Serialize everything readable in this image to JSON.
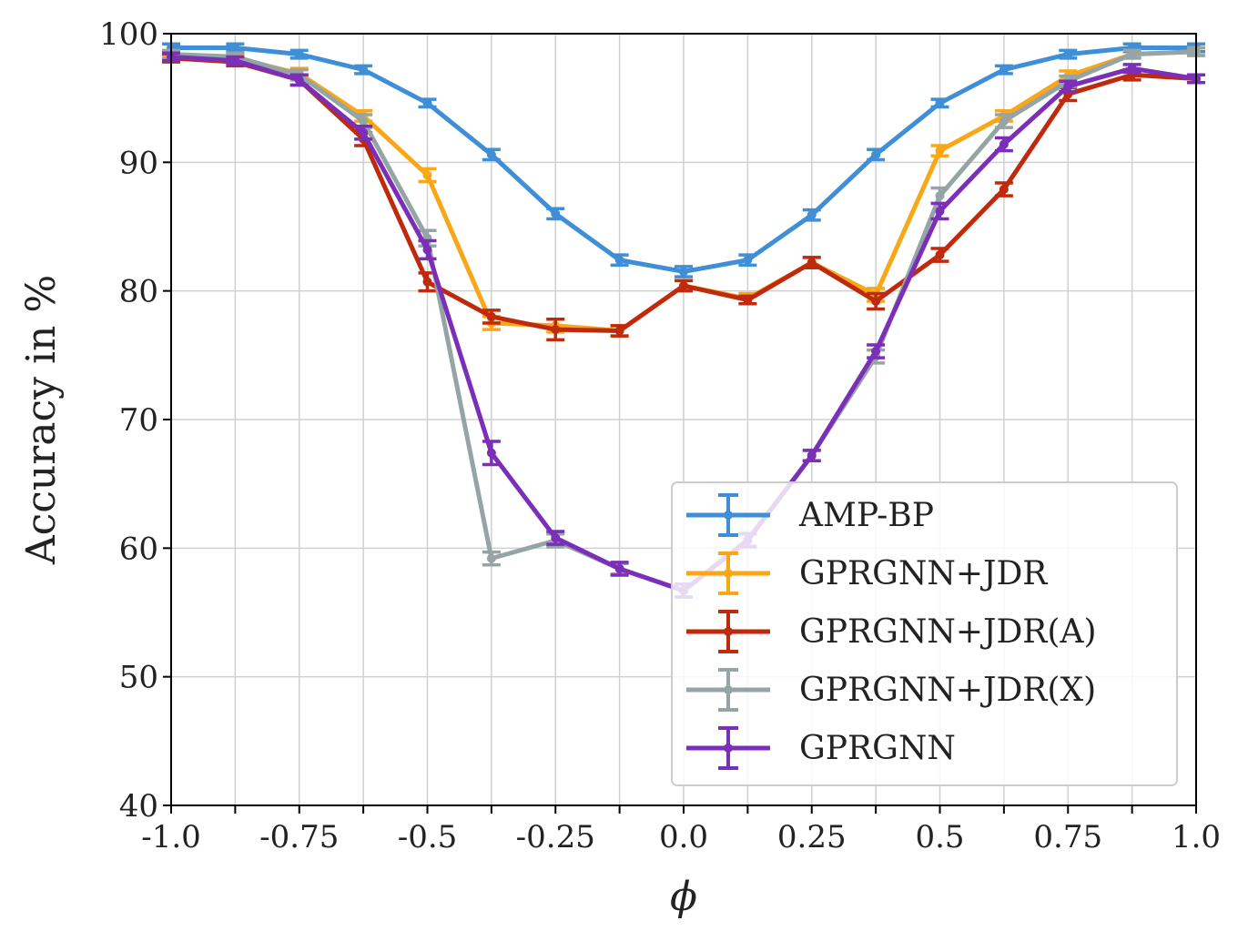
{
  "chart_data": {
    "type": "line",
    "title": "",
    "xlabel": "ϕ",
    "ylabel": "Accuracy in %",
    "xlim": [
      -1.0,
      1.0
    ],
    "ylim": [
      40,
      100
    ],
    "grid": true,
    "legend_position": "lower-right",
    "x": [
      -1.0,
      -0.875,
      -0.75,
      -0.625,
      -0.5,
      -0.375,
      -0.25,
      -0.125,
      0.0,
      0.125,
      0.25,
      0.375,
      0.5,
      0.625,
      0.75,
      0.875,
      1.0
    ],
    "x_ticks": [
      -1.0,
      -0.875,
      -0.75,
      -0.625,
      -0.5,
      -0.375,
      -0.25,
      -0.125,
      0.0,
      0.125,
      0.25,
      0.375,
      0.5,
      0.625,
      0.75,
      0.875,
      1.0
    ],
    "x_tick_labels": [
      {
        "value": -1.0,
        "label": "-1.0"
      },
      {
        "value": -0.75,
        "label": "-0.75"
      },
      {
        "value": -0.5,
        "label": "-0.5"
      },
      {
        "value": -0.25,
        "label": "-0.25"
      },
      {
        "value": 0.0,
        "label": "0.0"
      },
      {
        "value": 0.25,
        "label": "0.25"
      },
      {
        "value": 0.5,
        "label": "0.5"
      },
      {
        "value": 0.75,
        "label": "0.75"
      },
      {
        "value": 1.0,
        "label": "1.0"
      }
    ],
    "y_tick_labels": [
      {
        "value": 40,
        "label": "40"
      },
      {
        "value": 50,
        "label": "50"
      },
      {
        "value": 60,
        "label": "60"
      },
      {
        "value": 70,
        "label": "70"
      },
      {
        "value": 80,
        "label": "80"
      },
      {
        "value": 90,
        "label": "90"
      },
      {
        "value": 100,
        "label": "100"
      }
    ],
    "series": [
      {
        "name": "AMP-BP",
        "color": "#3f8fd8",
        "values": [
          98.9,
          98.9,
          98.4,
          97.2,
          94.6,
          90.6,
          86.0,
          82.4,
          81.5,
          82.4,
          85.9,
          90.6,
          94.6,
          97.2,
          98.4,
          98.9,
          98.9
        ],
        "errors": [
          0.3,
          0.3,
          0.3,
          0.3,
          0.3,
          0.4,
          0.4,
          0.4,
          0.4,
          0.4,
          0.4,
          0.4,
          0.3,
          0.3,
          0.3,
          0.3,
          0.3
        ]
      },
      {
        "name": "GPRGNN+JDR",
        "color": "#f9a617",
        "values": [
          98.3,
          98.1,
          96.9,
          93.6,
          89.0,
          77.5,
          77.3,
          76.9,
          80.4,
          79.4,
          82.2,
          79.7,
          90.9,
          93.6,
          96.7,
          98.4,
          98.6
        ],
        "errors": [
          0.3,
          0.3,
          0.4,
          0.4,
          0.5,
          0.5,
          0.5,
          0.4,
          0.4,
          0.4,
          0.4,
          0.5,
          0.4,
          0.4,
          0.4,
          0.3,
          0.3
        ]
      },
      {
        "name": "GPRGNN+JDR(A)",
        "color": "#c02a0c",
        "values": [
          98.1,
          97.8,
          96.4,
          91.8,
          80.7,
          78.0,
          77.0,
          76.9,
          80.4,
          79.3,
          82.2,
          79.2,
          82.8,
          87.9,
          95.3,
          96.8,
          96.5
        ],
        "errors": [
          0.3,
          0.3,
          0.4,
          0.5,
          0.7,
          0.5,
          0.8,
          0.4,
          0.4,
          0.3,
          0.4,
          0.6,
          0.5,
          0.5,
          0.5,
          0.4,
          0.3
        ]
      },
      {
        "name": "GPRGNN+JDR(X)",
        "color": "#95a5a6",
        "values": [
          98.4,
          98.2,
          96.8,
          93.2,
          84.1,
          59.2,
          60.6,
          58.4,
          56.7,
          60.7,
          67.2,
          74.9,
          87.4,
          93.2,
          96.3,
          98.4,
          98.6
        ],
        "errors": [
          0.3,
          0.3,
          0.4,
          0.5,
          0.6,
          0.5,
          0.5,
          0.4,
          0.5,
          0.5,
          0.4,
          0.5,
          0.6,
          0.5,
          0.4,
          0.3,
          0.3
        ]
      },
      {
        "name": "GPRGNN",
        "color": "#7b2fb8",
        "values": [
          98.2,
          97.9,
          96.4,
          92.3,
          83.2,
          67.4,
          60.8,
          58.4,
          56.7,
          60.6,
          67.2,
          75.3,
          86.2,
          91.4,
          95.9,
          97.3,
          96.5
        ],
        "errors": [
          0.3,
          0.3,
          0.4,
          0.5,
          0.7,
          0.9,
          0.5,
          0.5,
          0.5,
          0.5,
          0.4,
          0.5,
          0.6,
          0.5,
          0.4,
          0.3,
          0.3
        ]
      }
    ]
  }
}
